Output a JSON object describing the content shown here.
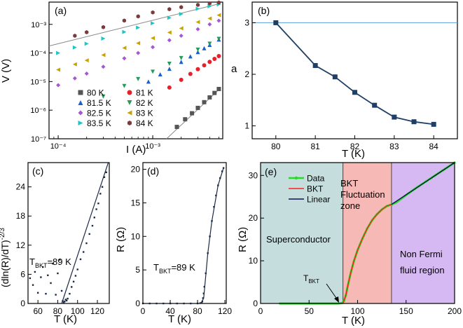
{
  "figure": {
    "panels": {
      "a": {
        "label": "(a)",
        "xlabel": "I (A)",
        "ylabel": "V (V)",
        "xticks": [
          "10⁻⁴",
          "10⁻³"
        ],
        "yticks": [
          "10⁻⁷",
          "10⁻⁶",
          "10⁻⁵",
          "10⁻⁴",
          "10⁻³"
        ],
        "legend": [
          {
            "label": "80 K",
            "color": "#555555",
            "marker": "square"
          },
          {
            "label": "81 K",
            "color": "#e8202a",
            "marker": "circle"
          },
          {
            "label": "81.5 K",
            "color": "#1f5fc8",
            "marker": "triangle-up"
          },
          {
            "label": "82 K",
            "color": "#2a9a5a",
            "marker": "triangle-down"
          },
          {
            "label": "82.5 K",
            "color": "#a855d6",
            "marker": "diamond"
          },
          {
            "label": "83 K",
            "color": "#c9a200",
            "marker": "triangle-left"
          },
          {
            "label": "83.5 K",
            "color": "#1cc6c6",
            "marker": "triangle-right"
          },
          {
            "label": "84 K",
            "color": "#7b3b3b",
            "marker": "hexagon"
          }
        ]
      },
      "b": {
        "label": "(b)",
        "xlabel": "T (K)",
        "ylabel": "a",
        "xticks": [
          "80",
          "81",
          "82",
          "83",
          "84"
        ],
        "yticks": [
          "1",
          "2",
          "3"
        ]
      },
      "c": {
        "label": "(c)",
        "xlabel": "T (K)",
        "ylabel": "(dln(R)/dT)⁻²ᐟ³",
        "ylabel_text": "(dln(R)/dT)",
        "ylabel_sup": "-2/3",
        "annotation_main": "T",
        "annotation_sub": "BKT",
        "annotation_tail": "=89 K",
        "xticks": [
          "60",
          "80",
          "100",
          "120"
        ],
        "yticks": [
          "0",
          "6",
          "12",
          "18",
          "24"
        ]
      },
      "d": {
        "label": "(d)",
        "xlabel": "T (K)",
        "ylabel": "R (Ω)",
        "annotation_main": "T",
        "annotation_sub": "BKT",
        "annotation_tail": "=89 K",
        "xticks": [
          "0",
          "40",
          "80",
          "120"
        ],
        "yticks": [
          "0",
          "5",
          "10",
          "15",
          "20"
        ]
      },
      "e": {
        "label": "(e)",
        "xlabel": "T (K)",
        "ylabel": "R (Ω)",
        "xticks": [
          "0",
          "50",
          "100",
          "150",
          "200"
        ],
        "yticks": [
          "0",
          "10",
          "20",
          "30"
        ],
        "legend": [
          {
            "label": "Data",
            "color": "#22dd22"
          },
          {
            "label": "BKT",
            "color": "#ff2020"
          },
          {
            "label": "Linear",
            "color": "#101050"
          }
        ],
        "region_superconductor": "Superconductor",
        "region_bkt_line1": "BKT",
        "region_bkt_line2": "Fluctuation",
        "region_bkt_line3": "zone",
        "region_nonfermi_line1": "Non Fermi",
        "region_nonfermi_line2": "fluid region",
        "tbkt_main": "T",
        "tbkt_sub": "BKT"
      }
    }
  },
  "chart_data": [
    {
      "panel": "a",
      "type": "scatter",
      "title": "",
      "xlabel": "I (A)",
      "ylabel": "V (V)",
      "xscale": "log",
      "yscale": "log",
      "xlim": [
        8e-05,
        0.0055
      ],
      "ylim": [
        1e-07,
        0.006
      ],
      "series": [
        {
          "name": "80 K",
          "exponent": 3.0,
          "x": [
            0.0018,
            0.0022,
            0.0026,
            0.003,
            0.0035,
            0.004,
            0.0045,
            0.005
          ],
          "y": [
            2.6e-07,
            4.8e-07,
            7.8e-07,
            1.2e-06,
            1.9e-06,
            2.8e-06,
            4e-06,
            5.5e-06
          ]
        },
        {
          "name": "81 K",
          "exponent": 2.17,
          "x": [
            0.0015,
            0.002,
            0.0025,
            0.003,
            0.0035,
            0.004,
            0.0045,
            0.005
          ],
          "y": [
            6.2e-06,
            1.15e-05,
            1.85e-05,
            2.7e-05,
            3.7e-05,
            4.9e-05,
            6.2e-05,
            7.8e-05
          ]
        },
        {
          "name": "81.5 K",
          "exponent": 1.95,
          "x": [
            0.0009,
            0.0012,
            0.0015,
            0.002,
            0.0025,
            0.003,
            0.0035,
            0.004,
            0.005
          ],
          "y": [
            1e-05,
            1.8e-05,
            2.8e-05,
            4.9e-05,
            7.6e-05,
            0.000108,
            0.000147,
            0.000192,
            0.000295
          ]
        },
        {
          "name": "82 K",
          "exponent": 1.65,
          "x": [
            0.0003,
            0.0005,
            0.0007,
            0.001,
            0.0015,
            0.002,
            0.003,
            0.004,
            0.005
          ],
          "y": [
            3e-06,
            7e-06,
            1.22e-05,
            2.2e-05,
            4.2e-05,
            6.6e-05,
            0.00013,
            0.00021,
            0.00031
          ]
        },
        {
          "name": "82.5 K",
          "exponent": 1.4,
          "x": [
            0.0001,
            0.00015,
            0.0002,
            0.0003,
            0.0005,
            0.0007,
            0.001,
            0.0015,
            0.002,
            0.003,
            0.004,
            0.005
          ],
          "y": [
            7.5e-06,
            1.3e-05,
            1.9e-05,
            3.3e-05,
            6.5e-05,
            0.0001,
            0.00016,
            0.00028,
            0.0004,
            0.00068,
            0.001,
            0.00135
          ]
        },
        {
          "name": "83 K",
          "exponent": 1.17,
          "x": [
            0.0001,
            0.00015,
            0.0002,
            0.0003,
            0.0005,
            0.0007,
            0.001,
            0.0015,
            0.002,
            0.003,
            0.004,
            0.005
          ],
          "y": [
            2.6e-05,
            4e-05,
            5.5e-05,
            8.5e-05,
            0.00015,
            0.00022,
            0.00033,
            0.00052,
            0.00073,
            0.0012,
            0.0016,
            0.0021
          ]
        },
        {
          "name": "83.5 K",
          "exponent": 1.08,
          "x": [
            0.0001,
            0.00015,
            0.0002,
            0.0003,
            0.0005,
            0.0007,
            0.001,
            0.0015,
            0.002,
            0.003,
            0.004,
            0.005
          ],
          "y": [
            0.0001,
            0.000155,
            0.00021,
            0.00032,
            0.00054,
            0.00077,
            0.0011,
            0.0017,
            0.0023,
            0.0035,
            0.0043,
            0.005
          ]
        },
        {
          "name": "84 K",
          "exponent": 1.03,
          "x": [
            0.00015,
            0.0002,
            0.0003,
            0.0005,
            0.0007,
            0.001,
            0.0015,
            0.002,
            0.003,
            0.004,
            0.005
          ],
          "y": [
            0.0004,
            0.00053,
            0.0008,
            0.00135,
            0.0019,
            0.0026,
            0.0034,
            0.004,
            0.0048,
            0.0054,
            0.0058
          ]
        }
      ],
      "reference_lines": [
        {
          "name": "slope 1 guide",
          "points": [
            [
              8e-05,
              0.000175
            ],
            [
              0.005,
              0.0052
            ]
          ]
        },
        {
          "name": "slope 3 guide",
          "points": [
            [
              0.0014,
              1e-07
            ],
            [
              0.005,
              5.2e-06
            ]
          ]
        }
      ]
    },
    {
      "panel": "b",
      "type": "line",
      "title": "",
      "xlabel": "T (K)",
      "ylabel": "a",
      "xlim": [
        79.4,
        84.6
      ],
      "ylim": [
        0.75,
        3.4
      ],
      "x": [
        80,
        81,
        81.5,
        82,
        82.5,
        83,
        83.5,
        84
      ],
      "y": [
        3.0,
        2.17,
        1.95,
        1.65,
        1.4,
        1.17,
        1.08,
        1.03
      ],
      "hline": 3
    },
    {
      "panel": "c",
      "type": "scatter",
      "title": "",
      "xlabel": "T (K)",
      "ylabel": "(dln(R)/dT)^-2/3",
      "xlim": [
        50,
        132
      ],
      "ylim": [
        0,
        29
      ],
      "x": [
        52,
        55,
        57,
        60,
        63,
        65,
        68,
        70,
        73,
        75,
        78,
        80,
        82,
        84,
        85,
        86,
        87,
        88,
        89,
        90,
        92,
        94,
        96,
        98,
        100,
        103,
        106,
        109,
        112,
        115,
        117,
        119,
        121,
        123,
        125,
        127,
        129
      ],
      "y": [
        5.2,
        3.8,
        6.5,
        2.2,
        5.4,
        7.5,
        2.0,
        5.8,
        4.2,
        8.2,
        1.8,
        6.2,
        9.0,
        2.6,
        0.5,
        0.2,
        0.4,
        0.8,
        0.6,
        1.0,
        2.0,
        3.4,
        4.5,
        5.7,
        7.0,
        9.1,
        10.6,
        12.4,
        14.3,
        16.0,
        17.7,
        19.4,
        20.6,
        22.6,
        24.0,
        26.0,
        27.0
      ],
      "fit_line": [
        [
          84,
          0
        ],
        [
          131,
          29
        ]
      ]
    },
    {
      "panel": "d",
      "type": "scatter",
      "title": "",
      "xlabel": "T (K)",
      "ylabel": "R (Ω)",
      "xlim": [
        0,
        122
      ],
      "ylim": [
        0,
        21
      ],
      "x": [
        0,
        10,
        20,
        30,
        40,
        50,
        60,
        70,
        80,
        84,
        86,
        87,
        88,
        89,
        90,
        92,
        95,
        98,
        101,
        104,
        107,
        110,
        113,
        116,
        118
      ],
      "y": [
        0,
        0,
        0,
        0,
        0,
        0,
        0,
        0,
        0,
        0.05,
        0.1,
        0.3,
        0.8,
        1.5,
        2.5,
        4.5,
        7.5,
        10.0,
        12.3,
        14.4,
        16.1,
        17.6,
        18.7,
        19.7,
        20.2
      ],
      "fit_line": [
        [
          85,
          0
        ],
        [
          89,
          0.8
        ],
        [
          95,
          7.5
        ],
        [
          101,
          12.3
        ],
        [
          110,
          17.6
        ],
        [
          118,
          20.2
        ]
      ]
    },
    {
      "panel": "e",
      "type": "line",
      "title": "",
      "xlabel": "T (K)",
      "ylabel": "R (Ω)",
      "xlim": [
        0,
        200
      ],
      "ylim": [
        0,
        33
      ],
      "regions": [
        {
          "name": "Superconductor",
          "x": [
            0,
            85
          ],
          "color": "#c5dedd"
        },
        {
          "name": "BKT Fluctuation zone",
          "x": [
            85,
            135
          ],
          "color": "#f6b9b6"
        },
        {
          "name": "Non Fermi fluid region",
          "x": [
            135,
            200
          ],
          "color": "#d6b9f2"
        }
      ],
      "series": [
        {
          "name": "Data",
          "x": [
            20,
            30,
            40,
            50,
            60,
            70,
            80,
            84,
            86,
            88,
            90,
            93,
            96,
            100,
            105,
            110,
            115,
            120,
            125,
            130,
            135,
            140,
            150,
            160,
            170,
            180,
            190,
            200
          ],
          "y": [
            0,
            0,
            0,
            0,
            0,
            0,
            0,
            0.1,
            0.6,
            2.0,
            4.2,
            7.2,
            9.8,
            12.5,
            15.2,
            17.6,
            19.5,
            20.9,
            22.0,
            22.8,
            23.2,
            23.7,
            25.4,
            27.0,
            28.5,
            30.0,
            31.5,
            33.0
          ]
        },
        {
          "name": "BKT",
          "x": [
            85,
            88,
            90,
            93,
            96,
            100,
            105,
            110,
            115,
            120,
            125,
            130,
            135
          ],
          "y": [
            0,
            2.0,
            4.2,
            7.2,
            9.8,
            12.5,
            15.2,
            17.6,
            19.5,
            20.9,
            22.0,
            22.8,
            23.2
          ]
        },
        {
          "name": "Linear",
          "x": [
            135,
            200
          ],
          "y": [
            23.2,
            33.0
          ]
        }
      ],
      "annotation": {
        "text": "TBKT",
        "x": 89,
        "y": 0
      }
    }
  ]
}
